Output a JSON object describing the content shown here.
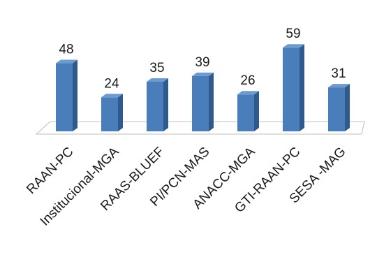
{
  "chart_data": {
    "type": "bar",
    "style": "3d-column",
    "categories": [
      "RAAN-PC",
      "Institucional-MGA",
      "RAAS-BLUEF",
      "PI/PCN-MAS",
      "ANACC-MGA",
      "GTI-RAAN-PC",
      "SESA -MAG"
    ],
    "values": [
      48,
      24,
      35,
      39,
      26,
      59,
      31
    ],
    "title": "",
    "xlabel": "",
    "ylabel": "",
    "ylim": [
      0,
      59
    ],
    "grid": false,
    "legend": "none",
    "data_labels": true
  },
  "colors": {
    "bar_front": "#4a7ebb",
    "bar_side": "#2e5a8e",
    "bar_top": "#6d9ad0",
    "floor": "#bfbfbf"
  }
}
